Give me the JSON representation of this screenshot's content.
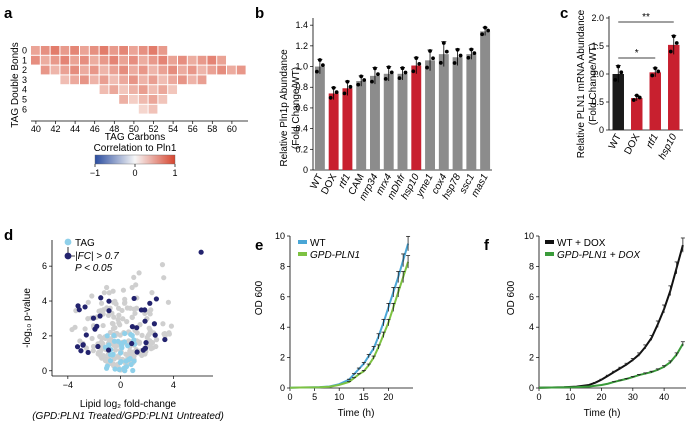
{
  "figure": {
    "panels": [
      "a",
      "b",
      "c",
      "d",
      "e",
      "f"
    ]
  },
  "chart_data": [
    {
      "panel": "a",
      "type": "heatmap",
      "xlabel": "TAG Carbons",
      "ylabel": "TAG Double Bonds",
      "x_ticks": [
        "40",
        "42",
        "44",
        "46",
        "48",
        "50",
        "52",
        "54",
        "56",
        "58",
        "60"
      ],
      "y_ticks": [
        "0",
        "1",
        "2",
        "3",
        "4",
        "5",
        "6"
      ],
      "colorbar": {
        "title": "Correlation to Pln1",
        "ticks": [
          "−1",
          "0",
          "1"
        ],
        "low": "#2b4da0",
        "mid": "#f7f7f7",
        "high": "#d6452f"
      },
      "carbons_range": [
        40,
        61
      ]
    },
    {
      "panel": "b",
      "type": "bar",
      "ylabel_line1": "Relative Pln1p Abundance",
      "ylabel_line2": "(Fold Change/WT)",
      "y_ticks": [
        "0",
        "0.2",
        "0.4",
        "0.6",
        "0.8",
        "1.0",
        "1.2",
        "1.4"
      ],
      "ylim": [
        0,
        1.45
      ],
      "categories": [
        "WT",
        "DOX",
        "rtf1",
        "CAM",
        "mrp34",
        "mrx4",
        "mDhfr",
        "hsp10",
        "yme1",
        "cox4",
        "hsp78",
        "ssc1",
        "mas1"
      ],
      "italic": [
        false,
        false,
        true,
        false,
        true,
        true,
        true,
        true,
        true,
        true,
        true,
        true,
        true
      ],
      "values": [
        1.0,
        0.74,
        0.79,
        0.86,
        0.91,
        0.93,
        0.93,
        1.01,
        1.06,
        1.12,
        1.09,
        1.12,
        1.34
      ],
      "errors": [
        0.07,
        0.06,
        0.07,
        0.05,
        0.08,
        0.07,
        0.06,
        0.08,
        0.1,
        0.12,
        0.08,
        0.05,
        0.04
      ],
      "colors": [
        "#8c8c8c",
        "#c8202f",
        "#c8202f",
        "#8c8c8c",
        "#8c8c8c",
        "#8c8c8c",
        "#8c8c8c",
        "#c8202f",
        "#8c8c8c",
        "#8c8c8c",
        "#8c8c8c",
        "#8c8c8c",
        "#8c8c8c"
      ]
    },
    {
      "panel": "c",
      "type": "bar",
      "ylabel_line1": "Relative PLN1 mRNA Abundance",
      "ylabel_line2": "(Fold Change/WT)",
      "y_ticks": [
        "0",
        "0.5",
        "1.0",
        "1.5",
        "2.0"
      ],
      "ylim": [
        0,
        2.0
      ],
      "categories": [
        "WT",
        "DOX",
        "rtf1",
        "hsp10"
      ],
      "italic": [
        false,
        false,
        true,
        true
      ],
      "values": [
        1.0,
        0.57,
        1.03,
        1.52
      ],
      "errors": [
        0.15,
        0.05,
        0.08,
        0.17
      ],
      "colors": [
        "#1a1a1a",
        "#c8202f",
        "#c8202f",
        "#c8202f"
      ],
      "significance": [
        {
          "label": "*"
        },
        {
          "label": "**"
        }
      ]
    },
    {
      "panel": "d",
      "type": "scatter",
      "xlabel": "Lipid log₂ fold-change",
      "xlabel_sub": "(GPD:PLN1 Treated/GPD:PLN1 Untreated)",
      "ylabel": "-log₁₀ p-value",
      "x_ticks": [
        "−4",
        "0",
        "4"
      ],
      "y_ticks": [
        "0",
        "2",
        "4",
        "6"
      ],
      "xlim": [
        -5.2,
        7
      ],
      "ylim": [
        -0.3,
        7.5
      ],
      "legend": [
        {
          "label": "TAG",
          "color": "#8fd0ea"
        },
        {
          "label": "|FC| > 0.7",
          "color": "#23236e"
        },
        {
          "label": "P < 0.05",
          "color": ""
        }
      ]
    },
    {
      "panel": "e",
      "type": "line",
      "xlabel": "Time (h)",
      "ylabel": "OD 600",
      "x_ticks": [
        "0",
        "5",
        "10",
        "15",
        "20"
      ],
      "y_ticks": [
        "0",
        "2",
        "4",
        "6",
        "8",
        "10"
      ],
      "xlim": [
        0,
        25
      ],
      "ylim": [
        0,
        10
      ],
      "series": [
        {
          "name": "WT",
          "color": "#4aa6d6",
          "x": [
            0,
            2,
            4,
            6,
            8,
            10,
            12,
            13,
            14,
            15,
            16,
            17,
            18,
            19,
            20,
            21,
            22,
            23,
            24
          ],
          "y": [
            0.02,
            0.03,
            0.04,
            0.06,
            0.1,
            0.25,
            0.55,
            0.9,
            1.25,
            1.6,
            2.1,
            2.6,
            3.4,
            4.3,
            5.3,
            6.3,
            7.3,
            8.4,
            9.5
          ]
        },
        {
          "name": "GPD-PLN1",
          "color": "#7dc242",
          "x": [
            0,
            2,
            4,
            6,
            8,
            10,
            12,
            13,
            14,
            15,
            16,
            17,
            18,
            19,
            20,
            21,
            22,
            23,
            24
          ],
          "y": [
            0.02,
            0.03,
            0.04,
            0.05,
            0.08,
            0.2,
            0.4,
            0.65,
            0.9,
            1.1,
            1.5,
            2.0,
            2.7,
            3.5,
            4.3,
            5.3,
            6.3,
            7.3,
            8.3
          ]
        }
      ]
    },
    {
      "panel": "f",
      "type": "line",
      "xlabel": "Time (h)",
      "ylabel": "OD 600",
      "x_ticks": [
        "0",
        "10",
        "20",
        "30",
        "40"
      ],
      "y_ticks": [
        "0",
        "2",
        "4",
        "6",
        "8",
        "10"
      ],
      "xlim": [
        0,
        47
      ],
      "ylim": [
        0,
        10
      ],
      "series": [
        {
          "name": "WT + DOX",
          "color": "#111111",
          "x": [
            0,
            4,
            8,
            12,
            16,
            18,
            20,
            22,
            24,
            26,
            28,
            30,
            32,
            34,
            36,
            38,
            40,
            42,
            44,
            46
          ],
          "y": [
            0.02,
            0.03,
            0.05,
            0.09,
            0.2,
            0.35,
            0.55,
            0.8,
            1.05,
            1.3,
            1.55,
            1.85,
            2.2,
            2.7,
            3.3,
            4.2,
            5.2,
            6.4,
            7.9,
            9.4
          ]
        },
        {
          "name": "GPD-PLN1 + DOX",
          "color": "#3a9b3a",
          "x": [
            0,
            4,
            8,
            12,
            16,
            18,
            20,
            22,
            24,
            26,
            28,
            30,
            32,
            34,
            36,
            38,
            40,
            42,
            44,
            46
          ],
          "y": [
            0.02,
            0.03,
            0.04,
            0.06,
            0.1,
            0.15,
            0.2,
            0.28,
            0.4,
            0.5,
            0.6,
            0.72,
            0.85,
            0.95,
            1.05,
            1.2,
            1.4,
            1.7,
            2.2,
            2.9
          ]
        }
      ]
    }
  ]
}
